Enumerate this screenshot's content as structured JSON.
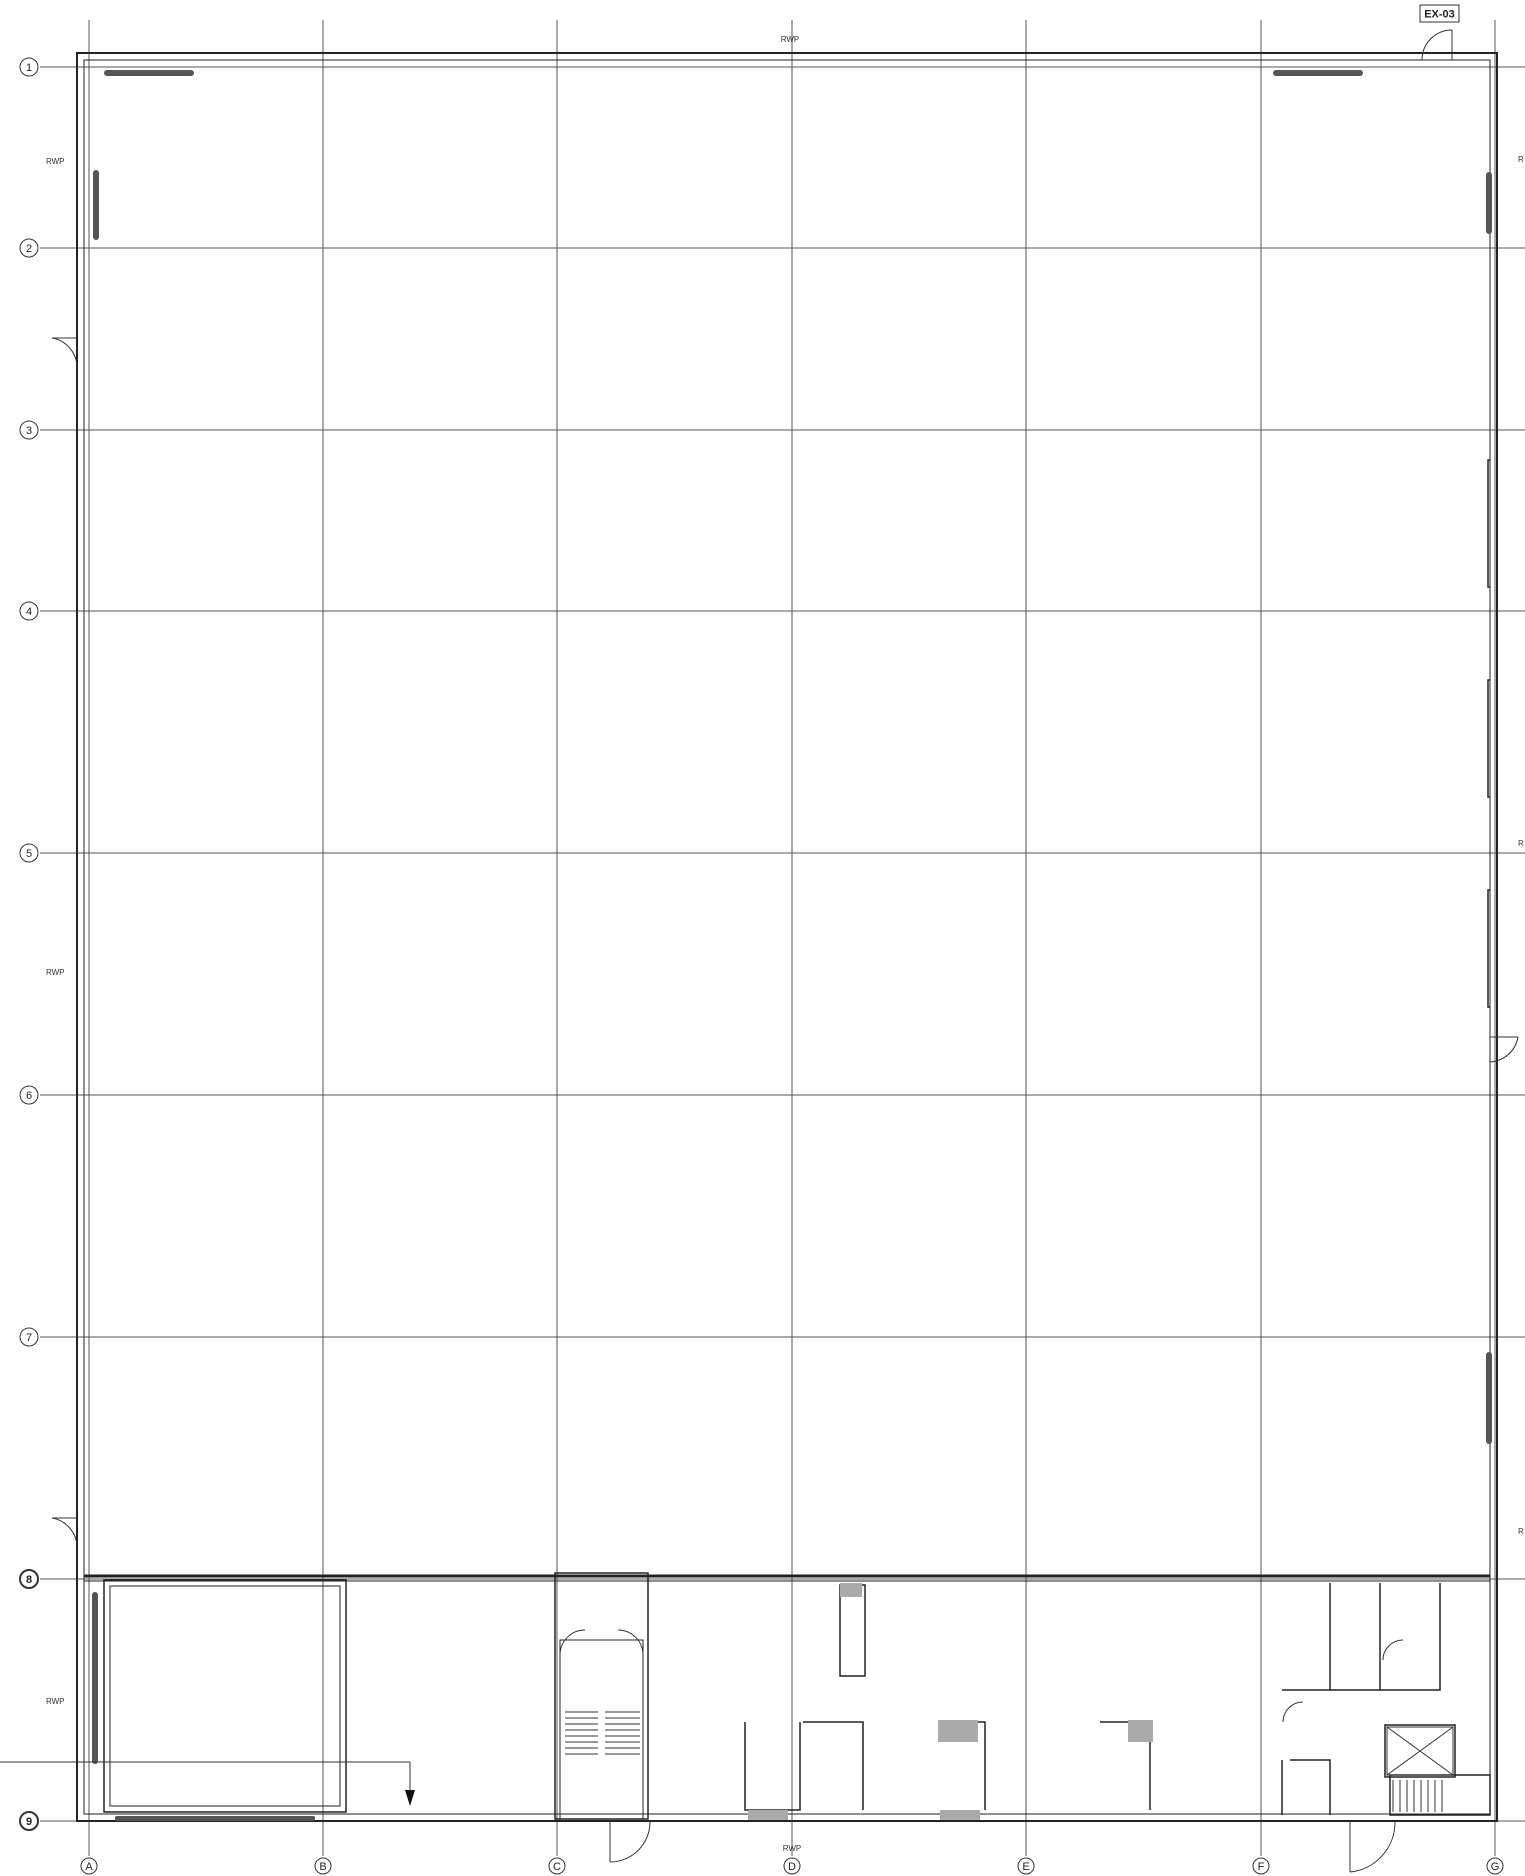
{
  "drawing": {
    "sheet_tag": "EX-03",
    "grid_rows": [
      "1",
      "2",
      "3",
      "4",
      "5",
      "6",
      "7",
      "8",
      "9"
    ],
    "grid_cols": [
      "A",
      "B",
      "C",
      "D",
      "E",
      "F",
      "G"
    ],
    "rwp_label": "RWP",
    "rwp_top": "RWP",
    "rwp_bottom": "RWP",
    "rwp_right": "R"
  }
}
